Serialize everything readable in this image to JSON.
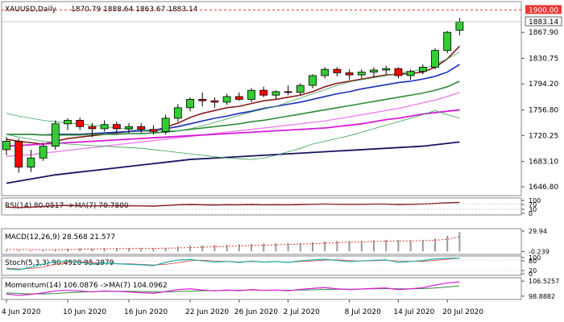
{
  "header": {
    "symbol": "XAUUSD,Daily",
    "ohlc": "1870.79 1888.64 1863.67 1883.14"
  },
  "chart_data": {
    "type": "candlestick",
    "price_axis": {
      "ticks": [
        1646.8,
        1683.1,
        1720.25,
        1756.8,
        1794.2,
        1830.75,
        1867.9
      ],
      "tick_labels": [
        "1646.80",
        "1683.10",
        "1720.25",
        "1756.80",
        "1794.20",
        "1830.75",
        "1867.90"
      ],
      "range": [
        1640,
        1905
      ]
    },
    "x_axis": {
      "date_labels": [
        "4 Jun 2020",
        "10 Jun 2020",
        "16 Jun 2020",
        "22 Jun 2020",
        "26 Jun 2020",
        "2 Jul 2020",
        "8 Jul 2020",
        "14 Jul 2020",
        "20 Jul 2020"
      ],
      "label_bar_index": [
        0,
        5,
        10,
        15,
        19,
        23,
        28,
        32,
        36
      ]
    },
    "level_line": {
      "value": 1900.0,
      "label": "1900.00",
      "color": "#e53935"
    },
    "last_price": {
      "value": 1883.14,
      "label": "1883.14"
    },
    "candles": [
      {
        "o": 1700,
        "h": 1718,
        "l": 1692,
        "c": 1712
      },
      {
        "o": 1712,
        "h": 1716,
        "l": 1667,
        "c": 1675
      },
      {
        "o": 1675,
        "h": 1700,
        "l": 1668,
        "c": 1688
      },
      {
        "o": 1688,
        "h": 1710,
        "l": 1684,
        "c": 1705
      },
      {
        "o": 1705,
        "h": 1742,
        "l": 1700,
        "c": 1737
      },
      {
        "o": 1737,
        "h": 1745,
        "l": 1728,
        "c": 1742
      },
      {
        "o": 1742,
        "h": 1746,
        "l": 1728,
        "c": 1733
      },
      {
        "o": 1733,
        "h": 1738,
        "l": 1718,
        "c": 1730
      },
      {
        "o": 1730,
        "h": 1742,
        "l": 1726,
        "c": 1736
      },
      {
        "o": 1736,
        "h": 1740,
        "l": 1724,
        "c": 1730
      },
      {
        "o": 1730,
        "h": 1738,
        "l": 1724,
        "c": 1733
      },
      {
        "o": 1733,
        "h": 1738,
        "l": 1724,
        "c": 1729
      },
      {
        "o": 1729,
        "h": 1735,
        "l": 1722,
        "c": 1726
      },
      {
        "o": 1726,
        "h": 1750,
        "l": 1722,
        "c": 1745
      },
      {
        "o": 1745,
        "h": 1765,
        "l": 1740,
        "c": 1760
      },
      {
        "o": 1760,
        "h": 1775,
        "l": 1755,
        "c": 1772
      },
      {
        "o": 1772,
        "h": 1782,
        "l": 1762,
        "c": 1770
      },
      {
        "o": 1770,
        "h": 1775,
        "l": 1760,
        "c": 1768
      },
      {
        "o": 1768,
        "h": 1780,
        "l": 1764,
        "c": 1776
      },
      {
        "o": 1776,
        "h": 1782,
        "l": 1770,
        "c": 1772
      },
      {
        "o": 1772,
        "h": 1788,
        "l": 1768,
        "c": 1785
      },
      {
        "o": 1785,
        "h": 1790,
        "l": 1775,
        "c": 1778
      },
      {
        "o": 1778,
        "h": 1785,
        "l": 1772,
        "c": 1783
      },
      {
        "o": 1783,
        "h": 1792,
        "l": 1778,
        "c": 1782
      },
      {
        "o": 1782,
        "h": 1795,
        "l": 1778,
        "c": 1792
      },
      {
        "o": 1792,
        "h": 1808,
        "l": 1788,
        "c": 1806
      },
      {
        "o": 1806,
        "h": 1818,
        "l": 1802,
        "c": 1815
      },
      {
        "o": 1815,
        "h": 1818,
        "l": 1805,
        "c": 1810
      },
      {
        "o": 1810,
        "h": 1815,
        "l": 1800,
        "c": 1807
      },
      {
        "o": 1807,
        "h": 1815,
        "l": 1802,
        "c": 1811
      },
      {
        "o": 1811,
        "h": 1818,
        "l": 1803,
        "c": 1814
      },
      {
        "o": 1814,
        "h": 1820,
        "l": 1808,
        "c": 1816
      },
      {
        "o": 1816,
        "h": 1818,
        "l": 1802,
        "c": 1806
      },
      {
        "o": 1806,
        "h": 1815,
        "l": 1800,
        "c": 1812
      },
      {
        "o": 1812,
        "h": 1822,
        "l": 1808,
        "c": 1818
      },
      {
        "o": 1818,
        "h": 1845,
        "l": 1815,
        "c": 1842
      },
      {
        "o": 1842,
        "h": 1870,
        "l": 1838,
        "c": 1868
      },
      {
        "o": 1870.79,
        "h": 1888.64,
        "l": 1863.67,
        "c": 1883.14
      }
    ],
    "series": [
      {
        "values": [
          1715,
          1712,
          1710,
          1708,
          1712,
          1716,
          1718,
          1720,
          1722,
          1724,
          1726,
          1727,
          1727,
          1732,
          1738,
          1746,
          1752,
          1756,
          1760,
          1762,
          1766,
          1770,
          1772,
          1775,
          1778,
          1783,
          1790,
          1795,
          1798,
          1801,
          1804,
          1807,
          1808,
          1809,
          1811,
          1818,
          1830,
          1848
        ]
      },
      {
        "values": [
          1722,
          1722,
          1722,
          1721,
          1722,
          1722,
          1722,
          1723,
          1724,
          1725,
          1726,
          1727,
          1728,
          1730,
          1733,
          1737,
          1741,
          1745,
          1748,
          1752,
          1755,
          1759,
          1762,
          1765,
          1768,
          1772,
          1776,
          1780,
          1783,
          1787,
          1790,
          1793,
          1796,
          1798,
          1801,
          1805,
          1811,
          1822
        ]
      },
      {
        "values": [
          1722,
          1722,
          1722,
          1721,
          1721,
          1721,
          1721,
          1722,
          1722,
          1722,
          1723,
          1723,
          1724,
          1725,
          1727,
          1729,
          1731,
          1733,
          1735,
          1737,
          1740,
          1742,
          1745,
          1748,
          1751,
          1754,
          1757,
          1760,
          1763,
          1766,
          1769,
          1772,
          1775,
          1778,
          1781,
          1785,
          1790,
          1798
        ]
      },
      {
        "values": [
          1690,
          1692,
          1693,
          1695,
          1697,
          1699,
          1701,
          1703,
          1705,
          1707,
          1709,
          1711,
          1713,
          1715,
          1717,
          1719,
          1721,
          1723,
          1725,
          1727,
          1729,
          1731,
          1733,
          1735,
          1737,
          1739,
          1741,
          1744,
          1747,
          1750,
          1753,
          1756,
          1759,
          1763,
          1767,
          1771,
          1776,
          1782
        ]
      },
      {
        "values": [
          1705,
          1706,
          1707,
          1708,
          1709,
          1710,
          1711,
          1712,
          1713,
          1714,
          1715,
          1716,
          1717,
          1718,
          1719,
          1720,
          1721,
          1722,
          1723,
          1724,
          1725,
          1726,
          1727,
          1728,
          1729,
          1730,
          1731,
          1733,
          1735,
          1737,
          1740,
          1743,
          1745,
          1748,
          1751,
          1753,
          1755,
          1757
        ]
      },
      {
        "values": [
          1652,
          1655,
          1658,
          1661,
          1664,
          1666,
          1668,
          1670,
          1672,
          1674,
          1676,
          1678,
          1680,
          1682,
          1684,
          1686,
          1687,
          1688,
          1689,
          1690,
          1691,
          1692,
          1693,
          1694,
          1695,
          1696,
          1697,
          1698,
          1699,
          1700,
          1701,
          1702,
          1703,
          1704,
          1705,
          1707,
          1709,
          1711
        ]
      },
      {
        "values": [
          1752,
          1748,
          1745,
          1742,
          1740,
          1738,
          1737,
          1735,
          1733,
          1731,
          1729,
          1728,
          1727,
          1727,
          1727,
          1730,
          1734,
          1739,
          1744,
          1749,
          1754,
          1758,
          1762,
          1768,
          1774,
          1780,
          1786,
          1792,
          1797,
          1800,
          1803,
          1806,
          1809,
          1812,
          1815,
          1822,
          1830,
          1840
        ]
      },
      {
        "values": [
          1722,
          1718,
          1715,
          1712,
          1710,
          1708,
          1707,
          1706,
          1705,
          1704,
          1703,
          1702,
          1700,
          1698,
          1696,
          1694,
          1692,
          1690,
          1688,
          1687,
          1686,
          1688,
          1692,
          1697,
          1702,
          1708,
          1712,
          1716,
          1720,
          1725,
          1730,
          1735,
          1740,
          1745,
          1750,
          1756,
          1750,
          1745
        ]
      }
    ],
    "rsi": {
      "label": "RSI(14) 80.0517 ->MA(7) 70.7800",
      "ticks": [
        "100",
        "70",
        "30",
        "0"
      ],
      "values": [
        45,
        42,
        45,
        50,
        56,
        58,
        55,
        54,
        56,
        55,
        55,
        54,
        53,
        57,
        62,
        64,
        62,
        61,
        63,
        62,
        64,
        62,
        63,
        62,
        64,
        66,
        68,
        66,
        65,
        66,
        67,
        67,
        64,
        66,
        68,
        72,
        77,
        80
      ]
    },
    "macd": {
      "label": "MACD(12,26,9) 28.568 21.577",
      "ticks": [
        "29.94",
        "-0.239"
      ],
      "hist": [
        2,
        1.5,
        1.5,
        2,
        3,
        4,
        4.5,
        4.5,
        5,
        5,
        5,
        5,
        4.8,
        5.5,
        7,
        8.5,
        9,
        9.5,
        10,
        10.5,
        11,
        11.5,
        12,
        12,
        12.5,
        13.5,
        15,
        15.5,
        15.5,
        16,
        16.5,
        17,
        16.5,
        16.5,
        17,
        19,
        23,
        28.568
      ],
      "signal": [
        3,
        2.8,
        2.6,
        2.4,
        2.5,
        2.8,
        3.2,
        3.5,
        3.8,
        4,
        4.2,
        4.4,
        4.5,
        4.7,
        5.1,
        5.6,
        6.2,
        6.8,
        7.4,
        8,
        8.6,
        9.2,
        9.8,
        10.3,
        10.8,
        11.4,
        12.1,
        12.8,
        13.4,
        14,
        14.6,
        15.1,
        15.4,
        15.6,
        15.9,
        16.5,
        17.8,
        21.577
      ]
    },
    "stoch": {
      "label": "Stoch(5,3,3) 96.4920 95.2979",
      "ticks": [
        "100",
        "80",
        "20",
        "0"
      ],
      "k": [
        30,
        25,
        40,
        60,
        75,
        78,
        70,
        60,
        65,
        62,
        58,
        55,
        50,
        70,
        85,
        88,
        80,
        72,
        76,
        70,
        78,
        72,
        75,
        70,
        80,
        86,
        90,
        82,
        75,
        80,
        84,
        86,
        70,
        76,
        82,
        92,
        95,
        96.49
      ],
      "d": [
        35,
        30,
        32,
        42,
        58,
        71,
        74,
        69,
        65,
        62,
        62,
        58,
        54,
        58,
        68,
        81,
        84,
        80,
        76,
        73,
        75,
        73,
        75,
        72,
        75,
        79,
        85,
        86,
        82,
        79,
        80,
        83,
        80,
        77,
        76,
        83,
        90,
        95.3
      ]
    },
    "momentum": {
      "label": "Momentum(14) 106.0876 ->MA(7) 104.0962",
      "ticks": [
        "106.5257",
        "98.8882"
      ],
      "values": [
        100,
        99.2,
        99.8,
        100.5,
        101.5,
        101.8,
        101.5,
        101,
        101.5,
        101.3,
        101,
        100.6,
        100.3,
        101.2,
        102.2,
        102.6,
        102,
        101.5,
        102,
        101.6,
        102.2,
        101.8,
        102,
        101.6,
        102.3,
        102.8,
        103.2,
        102.6,
        102.2,
        102.5,
        102.8,
        103,
        102.2,
        102.6,
        103.2,
        104.5,
        105.6,
        106.09
      ],
      "ma": [
        100.5,
        100.2,
        100,
        100,
        100.2,
        100.6,
        100.9,
        101.1,
        101.3,
        101.3,
        101.3,
        101.2,
        101,
        101,
        101.2,
        101.4,
        101.6,
        101.7,
        101.8,
        101.9,
        102,
        101.9,
        101.9,
        101.9,
        102,
        102.1,
        102.3,
        102.4,
        102.4,
        102.5,
        102.6,
        102.7,
        102.6,
        102.6,
        102.7,
        103,
        103.5,
        104.1
      ]
    }
  }
}
